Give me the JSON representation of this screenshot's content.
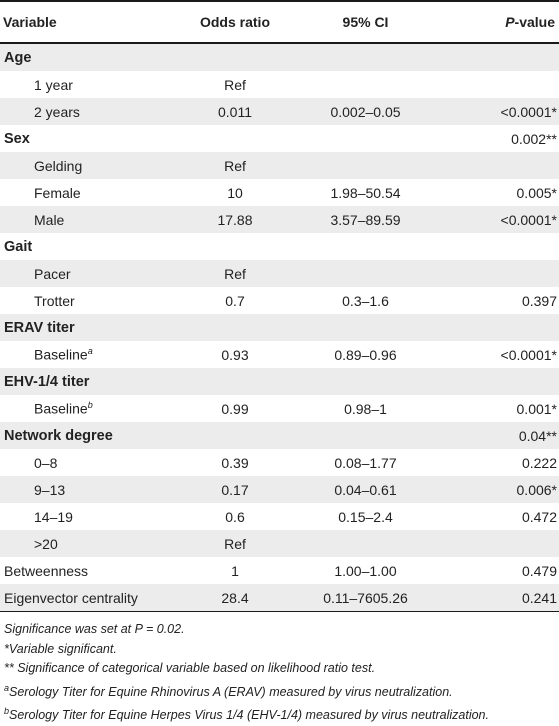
{
  "header": {
    "variable": "Variable",
    "odds_ratio": "Odds ratio",
    "ci": "95% CI",
    "p_prefix": "P",
    "p_suffix": "-value"
  },
  "rows": [
    {
      "variable": "Age",
      "bold": true,
      "indent": false,
      "odds_ratio": "",
      "ci": "",
      "p_value": ""
    },
    {
      "variable": "1 year",
      "bold": false,
      "indent": true,
      "odds_ratio": "Ref",
      "ci": "",
      "p_value": ""
    },
    {
      "variable": "2 years",
      "bold": false,
      "indent": true,
      "odds_ratio": "0.011",
      "ci": "0.002–0.05",
      "p_value": "<0.0001*"
    },
    {
      "variable": "Sex",
      "bold": true,
      "indent": false,
      "odds_ratio": "",
      "ci": "",
      "p_value": "0.002**"
    },
    {
      "variable": "Gelding",
      "bold": false,
      "indent": true,
      "odds_ratio": "Ref",
      "ci": "",
      "p_value": ""
    },
    {
      "variable": "Female",
      "bold": false,
      "indent": true,
      "odds_ratio": "10",
      "ci": "1.98–50.54",
      "p_value": "0.005*"
    },
    {
      "variable": "Male",
      "bold": false,
      "indent": true,
      "odds_ratio": "17.88",
      "ci": "3.57–89.59",
      "p_value": "<0.0001*"
    },
    {
      "variable": "Gait",
      "bold": true,
      "indent": false,
      "odds_ratio": "",
      "ci": "",
      "p_value": ""
    },
    {
      "variable": "Pacer",
      "bold": false,
      "indent": true,
      "odds_ratio": "Ref",
      "ci": "",
      "p_value": ""
    },
    {
      "variable": "Trotter",
      "bold": false,
      "indent": true,
      "odds_ratio": "0.7",
      "ci": "0.3–1.6",
      "p_value": "0.397"
    },
    {
      "variable": "ERAV titer",
      "bold": true,
      "indent": false,
      "odds_ratio": "",
      "ci": "",
      "p_value": ""
    },
    {
      "variable": "Baseline",
      "sup": "a",
      "bold": false,
      "indent": true,
      "odds_ratio": "0.93",
      "ci": "0.89–0.96",
      "p_value": "<0.0001*"
    },
    {
      "variable": "EHV-1/4 titer",
      "bold": true,
      "indent": false,
      "odds_ratio": "",
      "ci": "",
      "p_value": ""
    },
    {
      "variable": "Baseline",
      "sup": "b",
      "bold": false,
      "indent": true,
      "odds_ratio": "0.99",
      "ci": "0.98–1",
      "p_value": "0.001*"
    },
    {
      "variable": "Network degree",
      "bold": true,
      "indent": false,
      "odds_ratio": "",
      "ci": "",
      "p_value": "0.04**"
    },
    {
      "variable": "0–8",
      "bold": false,
      "indent": true,
      "odds_ratio": "0.39",
      "ci": "0.08–1.77",
      "p_value": "0.222"
    },
    {
      "variable": "9–13",
      "bold": false,
      "indent": true,
      "odds_ratio": "0.17",
      "ci": "0.04–0.61",
      "p_value": "0.006*"
    },
    {
      "variable": "14–19",
      "bold": false,
      "indent": true,
      "odds_ratio": "0.6",
      "ci": "0.15–2.4",
      "p_value": "0.472"
    },
    {
      "variable": ">20",
      "bold": false,
      "indent": true,
      "odds_ratio": "Ref",
      "ci": "",
      "p_value": ""
    },
    {
      "variable": "Betweenness",
      "bold": false,
      "indent": false,
      "odds_ratio": "1",
      "ci": "1.00–1.00",
      "p_value": "0.479"
    },
    {
      "variable": "Eigenvector centrality",
      "bold": false,
      "indent": false,
      "odds_ratio": "28.4",
      "ci": "0.11–7605.26",
      "p_value": "0.241"
    }
  ],
  "notes": {
    "significance": "Significance was set at P = 0.02.",
    "single_star": "*Variable significant.",
    "double_star": "** Significance of categorical variable based on likelihood ratio test.",
    "note_a_mark": "a",
    "note_a": "Serology Titer for Equine Rhinovirus A (ERAV) measured by virus neutralization.",
    "note_b_mark": "b",
    "note_b": "Serology Titer for Equine Herpes Virus 1/4 (EHV-1/4) measured by virus neutralization."
  }
}
